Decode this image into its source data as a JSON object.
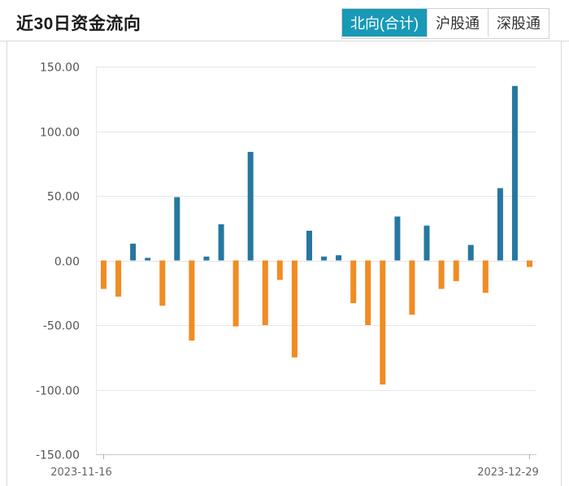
{
  "header": {
    "title": "近30日资金流向",
    "tabs": [
      {
        "label": "北向(合计)",
        "active": true
      },
      {
        "label": "沪股通",
        "active": false
      },
      {
        "label": "深股通",
        "active": false
      }
    ]
  },
  "colors": {
    "positive": "#2577a0",
    "negative": "#f08c22",
    "tab_active": "#1899b6",
    "grid": "#e6e6e6"
  },
  "chart_data": {
    "type": "bar",
    "title": "",
    "xlabel": "",
    "ylabel": "",
    "ylim": [
      -150,
      150
    ],
    "yticks": [
      "150.00",
      "100.00",
      "50.00",
      "0.00",
      "-50.00",
      "-100.00",
      "-150.00"
    ],
    "x_tick_labels": [
      "2023-11-16",
      "2023-12-29"
    ],
    "grid": true,
    "values": [
      -22,
      -28,
      13,
      2,
      -35,
      49,
      -62,
      3,
      28,
      -51,
      84,
      -50,
      -15,
      -75,
      23,
      3,
      4,
      -33,
      -50,
      -96,
      34,
      -42,
      27,
      -22,
      -16,
      12,
      -25,
      56,
      135,
      -5
    ]
  }
}
